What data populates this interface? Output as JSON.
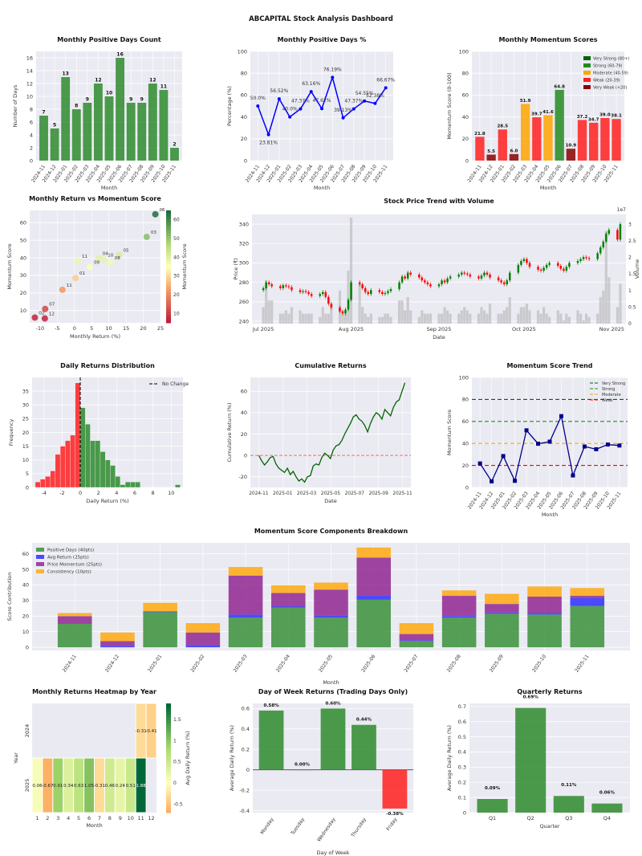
{
  "title": "ABCAPITAL Stock Analysis Dashboard",
  "months": [
    "2024-11",
    "2024-12",
    "2025-01",
    "2025-02",
    "2025-03",
    "2025-04",
    "2025-05",
    "2025-06",
    "2025-07",
    "2025-08",
    "2025-09",
    "2025-10",
    "2025-11"
  ],
  "colors": {
    "green": "#2e8b2e",
    "red": "#ff2020",
    "orange": "#ffa500",
    "darkred": "#8b0000",
    "darkgreen": "#006400",
    "blue": "#0000ff",
    "navy": "#00008b",
    "purple": "#800080",
    "bg": "#eaeaf2"
  },
  "chart_data": [
    {
      "type": "bar",
      "title": "Monthly Positive Days Count",
      "xlabel": "Month",
      "ylabel": "Number of Days",
      "ylim": [
        0,
        17
      ],
      "yticks": [
        0,
        2,
        4,
        6,
        8,
        10,
        12,
        14,
        16
      ],
      "values": [
        7,
        5,
        13,
        8,
        9,
        12,
        10,
        16,
        9,
        9,
        12,
        11,
        2
      ]
    },
    {
      "type": "line",
      "title": "Monthly Positive Days %",
      "xlabel": "Month",
      "ylabel": "Percentage (%)",
      "ylim": [
        0,
        100
      ],
      "yticks": [
        0,
        20,
        40,
        60,
        80,
        100
      ],
      "values": [
        50.0,
        23.81,
        56.52,
        40.0,
        47.37,
        63.16,
        47.62,
        76.19,
        39.13,
        47.37,
        54.55,
        52.38,
        66.67
      ],
      "labels": [
        "50.0%",
        "23.81%",
        "56.52%",
        "40.0%",
        "47.37%",
        "63.16%",
        "47.62%",
        "76.19%",
        "39.13%",
        "47.37%",
        "54.55%",
        "52.38%",
        "66.67%"
      ]
    },
    {
      "type": "bar",
      "title": "Monthly Momentum Scores",
      "xlabel": "Month",
      "ylabel": "Momentum Score (0-100)",
      "ylim": [
        0,
        100
      ],
      "yticks": [
        0,
        20,
        40,
        60,
        80,
        100
      ],
      "values": [
        21.8,
        5.5,
        28.5,
        6.0,
        51.9,
        39.7,
        41.6,
        64.8,
        10.9,
        37.2,
        34.7,
        39.0,
        38.1
      ],
      "labels": [
        "21.8",
        "5.5",
        "28.5",
        "6.0",
        "51.9",
        "39.7",
        "41.6",
        "64.8",
        "10.9",
        "37.2",
        "34.7",
        "39.0",
        "38.1"
      ],
      "legend": [
        {
          "label": "Very Strong (80+)",
          "color": "#006400"
        },
        {
          "label": "Strong (60-79)",
          "color": "#228b22"
        },
        {
          "label": "Moderate (40-59)",
          "color": "#ffa500"
        },
        {
          "label": "Weak (20-39)",
          "color": "#ff2020"
        },
        {
          "label": "Very Weak (<20)",
          "color": "#8b0000"
        }
      ]
    },
    {
      "type": "scatter",
      "title": "Monthly Return vs Momentum Score",
      "xlabel": "Monthly Return (%)",
      "ylabel": "Momentum Score",
      "colorbar_label": "Momentum Score",
      "xlim": [
        -13,
        25
      ],
      "ylim": [
        3,
        67
      ],
      "xticks": [
        -10,
        -5,
        0,
        5,
        10,
        15,
        20,
        25
      ],
      "yticks": [
        10,
        20,
        30,
        40,
        50,
        60
      ],
      "cticks": [
        10,
        20,
        30,
        40,
        50,
        60
      ],
      "points": [
        {
          "x": -11.5,
          "y": 6.0,
          "label": "02"
        },
        {
          "x": -8.6,
          "y": 5.5,
          "label": "12"
        },
        {
          "x": -8.5,
          "y": 10.9,
          "label": "07"
        },
        {
          "x": -3.5,
          "y": 21.8,
          "label": "11"
        },
        {
          "x": 0.3,
          "y": 28.5,
          "label": "01"
        },
        {
          "x": 1.0,
          "y": 38.1,
          "label": "11"
        },
        {
          "x": 4.5,
          "y": 34.7,
          "label": "09"
        },
        {
          "x": 7.0,
          "y": 39.7,
          "label": "04"
        },
        {
          "x": 8.5,
          "y": 39.0,
          "label": "10"
        },
        {
          "x": 10.5,
          "y": 37.2,
          "label": "08"
        },
        {
          "x": 13.0,
          "y": 41.6,
          "label": "05"
        },
        {
          "x": 21.0,
          "y": 51.9,
          "label": "03"
        },
        {
          "x": 23.5,
          "y": 64.8,
          "label": "06"
        }
      ]
    },
    {
      "type": "candlestick",
      "title": "Stock Price Trend with Volume",
      "xlabel": "Date",
      "ylabel": "Price (₹)",
      "y2label": "Volume",
      "y2_multiplier": "1e7",
      "ylim": [
        237.5,
        350
      ],
      "yticks": [
        240,
        260,
        280,
        300,
        320,
        340
      ],
      "y2lim": [
        0,
        3.3
      ],
      "y2ticks": [
        0.0,
        0.5,
        1.0,
        1.5,
        2.0,
        2.5,
        3.0
      ],
      "xticks": [
        {
          "day": 0,
          "label": "Jul 2025"
        },
        {
          "day": 31,
          "label": "Aug 2025"
        },
        {
          "day": 62,
          "label": "Sep 2025"
        },
        {
          "day": 92,
          "label": "Oct 2025"
        },
        {
          "day": 123,
          "label": "Nov 2025"
        }
      ],
      "close": [
        274,
        280,
        278,
        276,
        274,
        277,
        276,
        275,
        272,
        270,
        271,
        270,
        268,
        266,
        268,
        270,
        265,
        258,
        254,
        250,
        248,
        252,
        262,
        280,
        278,
        274,
        270,
        268,
        272,
        270,
        268,
        269,
        271,
        273,
        280,
        286,
        284,
        290,
        288,
        285,
        282,
        280,
        278,
        276,
        278,
        282,
        280,
        284,
        286,
        288,
        290,
        289,
        288,
        286,
        284,
        287,
        290,
        288,
        285,
        282,
        280,
        278,
        282,
        290,
        298,
        302,
        304,
        300,
        296,
        293,
        292,
        295,
        298,
        300,
        297,
        294,
        292,
        296,
        300,
        302,
        304,
        306,
        305,
        304,
        310,
        316,
        322,
        330,
        334,
        324,
        340
      ],
      "volume": [
        0.5,
        1.3,
        0.7,
        0.7,
        0.3,
        0.3,
        0.4,
        0.3,
        0.5,
        0.4,
        0.3,
        0.3,
        0.3,
        0.3,
        0.2,
        0.5,
        0.3,
        0.3,
        0.6,
        1.0,
        0.4,
        0.3,
        1.6,
        3.2,
        1.2,
        0.5,
        0.3,
        0.2,
        0.3,
        0.2,
        0.2,
        0.3,
        0.3,
        0.2,
        0.7,
        0.7,
        0.4,
        0.8,
        0.4,
        0.2,
        0.4,
        0.3,
        0.3,
        0.3,
        0.3,
        0.3,
        0.5,
        0.4,
        0.3,
        0.3,
        0.4,
        0.5,
        0.4,
        0.3,
        0.3,
        0.5,
        0.4,
        0.3,
        0.6,
        0.3,
        0.3,
        0.4,
        0.5,
        0.8,
        0.3,
        0.5,
        0.5,
        0.6,
        0.4,
        0.4,
        0.3,
        0.5,
        0.3,
        0.2,
        0.4,
        0.3,
        0.1,
        0.3,
        0.2,
        0.4,
        0.3,
        0.1,
        0.3,
        0.2,
        0.3,
        0.8,
        1.0,
        2.8,
        1.4,
        0.5,
        1.2
      ]
    },
    {
      "type": "histogram",
      "title": "Daily Returns Distribution",
      "xlabel": "Daily Return (%)",
      "ylabel": "Frequency",
      "legend": "No Change",
      "xlim": [
        -5.3,
        11.3
      ],
      "ylim": [
        0,
        40
      ],
      "xticks": [
        -4,
        -2,
        0,
        2,
        4,
        6,
        8,
        10
      ],
      "yticks": [
        0,
        5,
        10,
        15,
        20,
        25,
        30,
        35
      ],
      "bin_start": -4.95,
      "bin_width": 0.55,
      "counts": [
        2,
        3,
        4,
        6,
        12,
        15,
        17,
        19,
        38,
        29,
        23,
        17,
        17,
        13,
        10,
        8,
        4,
        1,
        2,
        2,
        2,
        0,
        0,
        0,
        0,
        0,
        0,
        0,
        1
      ]
    },
    {
      "type": "line",
      "title": "Cumulative Returns",
      "xlabel": "Date",
      "ylabel": "Cumulative Return (%)",
      "xlim": [
        -0.7,
        12.7
      ],
      "ylim": [
        -30,
        73
      ],
      "yticks": [
        -20,
        0,
        20,
        40,
        60
      ],
      "xticks": [
        {
          "x": 0,
          "label": "2024-11"
        },
        {
          "x": 2,
          "label": "2025-01"
        },
        {
          "x": 4,
          "label": "2025-03"
        },
        {
          "x": 6,
          "label": "2025-05"
        },
        {
          "x": 8,
          "label": "2025-07"
        },
        {
          "x": 10,
          "label": "2025-09"
        },
        {
          "x": 12,
          "label": "2025-11"
        }
      ],
      "values": [
        0,
        -5,
        -9,
        -6,
        -2,
        -1,
        -8,
        -12,
        -14,
        -16,
        -12,
        -18,
        -15,
        -20,
        -24,
        -22,
        -25,
        -20,
        -19,
        -10,
        -8,
        -9,
        -2,
        2,
        0,
        -3,
        5,
        9,
        10,
        14,
        20,
        25,
        30,
        36,
        38,
        34,
        32,
        28,
        22,
        30,
        36,
        40,
        38,
        34,
        43,
        40,
        37,
        45,
        50,
        52,
        60,
        68
      ]
    },
    {
      "type": "line",
      "title": "Momentum Score Trend",
      "xlabel": "Month",
      "ylabel": "Momentum Score",
      "ylim": [
        0,
        100
      ],
      "yticks": [
        0,
        20,
        40,
        60,
        80,
        100
      ],
      "values": [
        21.8,
        5.5,
        28.5,
        6.0,
        51.9,
        39.7,
        41.6,
        64.8,
        10.9,
        37.2,
        34.7,
        39.0,
        38.1
      ],
      "thresholds": [
        {
          "label": "Very Strong",
          "value": 80,
          "color": "#006400"
        },
        {
          "label": "Strong",
          "value": 60,
          "color": "#228b22"
        },
        {
          "label": "Moderate",
          "value": 40,
          "color": "#ffa500"
        },
        {
          "label": "Weak",
          "value": 20,
          "color": "#ff0000"
        }
      ]
    },
    {
      "type": "bar",
      "title": "Momentum Score Components Breakdown",
      "xlabel": "Month",
      "ylabel": "Score Contribution",
      "ylim": [
        -2,
        67
      ],
      "yticks": [
        0,
        10,
        20,
        30,
        40,
        50,
        60
      ],
      "series": [
        {
          "name": "Positive Days (40pts)",
          "color": "#2e8b2e",
          "values": [
            15,
            0,
            22.5,
            0,
            19,
            25.5,
            19,
            30.5,
            4,
            19,
            21.5,
            21,
            26.5
          ]
        },
        {
          "name": "Avg Return (25pts)",
          "color": "#2020ff",
          "values": [
            0,
            1,
            0.5,
            1.5,
            2,
            0.8,
            1.5,
            2.5,
            0.5,
            1,
            0.8,
            1,
            5
          ]
        },
        {
          "name": "Price Momentum (25pts)",
          "color": "#8b1a8b",
          "values": [
            5,
            3,
            0,
            8,
            25,
            8.5,
            16.5,
            24.5,
            4,
            13,
            5.5,
            10.5,
            1.5
          ]
        },
        {
          "name": "Consistency (10pts)",
          "color": "#ffa500",
          "values": [
            2,
            5.5,
            5.5,
            6,
            5.5,
            5,
            4.5,
            6.5,
            7,
            3.5,
            6.5,
            6.5,
            5
          ]
        }
      ]
    },
    {
      "type": "heatmap",
      "title": "Monthly Returns Heatmap by Year",
      "xlabel": "Month",
      "ylabel": "Year",
      "colorbar_label": "Avg Daily Return (%)",
      "columns": [
        "1",
        "2",
        "3",
        "4",
        "5",
        "6",
        "7",
        "8",
        "9",
        "10",
        "11",
        "12"
      ],
      "rows": [
        "2024",
        "2025"
      ],
      "clim": [
        -0.7,
        1.88
      ],
      "cticks": [
        -0.5,
        0.0,
        0.5,
        1.0,
        1.5
      ],
      "values": [
        [
          null,
          null,
          null,
          null,
          null,
          null,
          null,
          null,
          null,
          null,
          -0.31,
          -0.41
        ],
        [
          0.06,
          -0.67,
          0.91,
          0.34,
          0.63,
          1.05,
          -0.31,
          0.46,
          0.24,
          0.51,
          1.88,
          null
        ]
      ],
      "labels": [
        [
          "",
          "",
          "",
          "",
          "",
          "",
          "",
          "",
          "",
          "",
          "-0.31",
          "-0.41"
        ],
        [
          "0.06",
          "-0.67",
          "0.91",
          "0.34",
          "0.63",
          "1.05",
          "-0.31",
          "0.46",
          "0.24",
          "0.51",
          "1.88",
          ""
        ]
      ]
    },
    {
      "type": "bar",
      "title": "Day of Week Returns (Trading Days Only)",
      "xlabel": "Day of Week",
      "ylabel": "Average Daily Return (%)",
      "ylim": [
        -0.42,
        0.65
      ],
      "yticks": [
        -0.4,
        -0.2,
        0.0,
        0.2,
        0.4,
        0.6
      ],
      "categories": [
        "Monday",
        "Tuesday",
        "Wednesday",
        "Thursday",
        "Friday"
      ],
      "values": [
        0.58,
        0.0,
        0.6,
        0.44,
        -0.38
      ],
      "labels": [
        "0.58%",
        "0.00%",
        "0.60%",
        "0.44%",
        "-0.38%"
      ]
    },
    {
      "type": "bar",
      "title": "Quarterly Returns",
      "xlabel": "Quarter",
      "ylabel": "Average Daily Return (%)",
      "ylim": [
        0,
        0.72
      ],
      "yticks": [
        0.0,
        0.1,
        0.2,
        0.3,
        0.4,
        0.5,
        0.6,
        0.7
      ],
      "categories": [
        "Q1",
        "Q2",
        "Q3",
        "Q4"
      ],
      "values": [
        0.09,
        0.69,
        0.11,
        0.06
      ],
      "labels": [
        "0.09%",
        "0.69%",
        "0.11%",
        "0.06%"
      ]
    }
  ]
}
